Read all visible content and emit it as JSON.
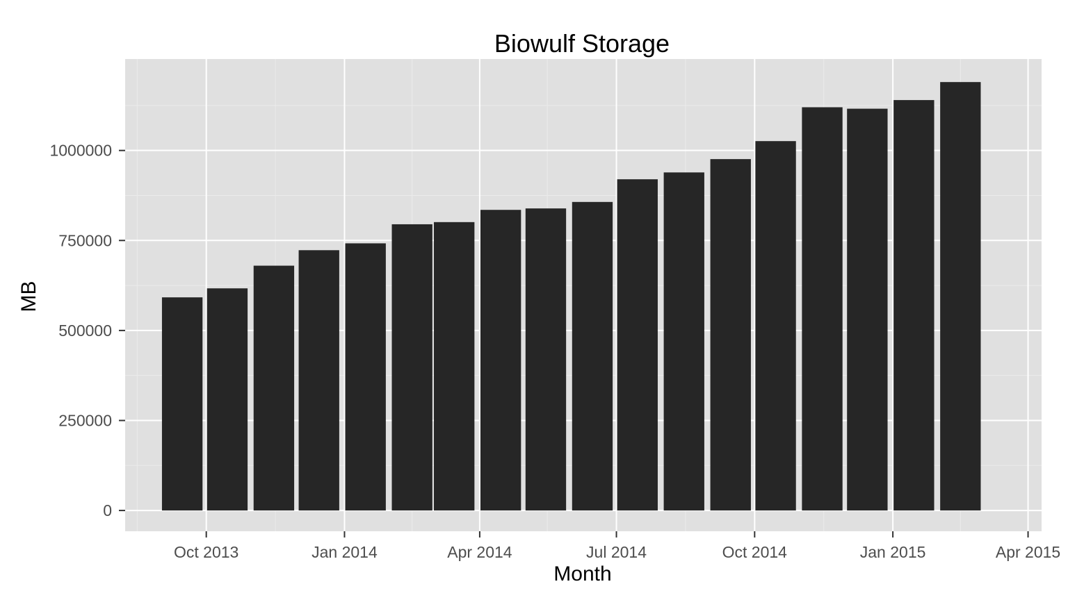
{
  "chart_data": {
    "type": "bar",
    "title": "Biowulf Storage",
    "xlabel": "Month",
    "ylabel": "MB",
    "x": [
      "2013-09-15",
      "2013-10-15",
      "2013-11-15",
      "2013-12-15",
      "2014-01-15",
      "2014-02-15",
      "2014-03-15",
      "2014-04-15",
      "2014-05-15",
      "2014-06-15",
      "2014-07-15",
      "2014-08-15",
      "2014-09-15",
      "2014-10-15",
      "2014-11-15",
      "2014-12-15",
      "2015-01-15",
      "2015-02-15"
    ],
    "values": [
      592000,
      617000,
      680000,
      723000,
      742000,
      795000,
      801000,
      835000,
      839000,
      857000,
      920000,
      939000,
      976000,
      1026000,
      1120000,
      1116000,
      1140000,
      1190000
    ],
    "xlim": [
      "2013-08-08",
      "2015-04-10"
    ],
    "ylim": [
      -57700,
      1254000
    ],
    "x_ticks": [
      {
        "date": "2013-10-01",
        "label": "Oct 2013"
      },
      {
        "date": "2014-01-01",
        "label": "Jan 2014"
      },
      {
        "date": "2014-04-01",
        "label": "Apr 2014"
      },
      {
        "date": "2014-07-01",
        "label": "Jul 2014"
      },
      {
        "date": "2014-10-01",
        "label": "Oct 2014"
      },
      {
        "date": "2015-01-01",
        "label": "Jan 2015"
      },
      {
        "date": "2015-04-01",
        "label": "Apr 2015"
      }
    ],
    "x_minor_ticks": [
      "2013-08-16",
      "2013-11-16",
      "2014-02-15",
      "2014-05-16",
      "2014-08-16",
      "2014-11-16",
      "2015-02-15"
    ],
    "y_ticks": [
      {
        "value": 0,
        "label": "0"
      },
      {
        "value": 250000,
        "label": "250000"
      },
      {
        "value": 500000,
        "label": "500000"
      },
      {
        "value": 750000,
        "label": "750000"
      },
      {
        "value": 1000000,
        "label": "1000000"
      }
    ],
    "y_minor_ticks": [
      125000,
      375000,
      625000,
      875000,
      1125000
    ],
    "grid": true,
    "colors": {
      "bar": "#262626",
      "panel": "#e0e0e0",
      "grid_major": "#ffffff",
      "grid_minor": "#ebebeb",
      "tick_label": "#4d4d4d"
    }
  }
}
